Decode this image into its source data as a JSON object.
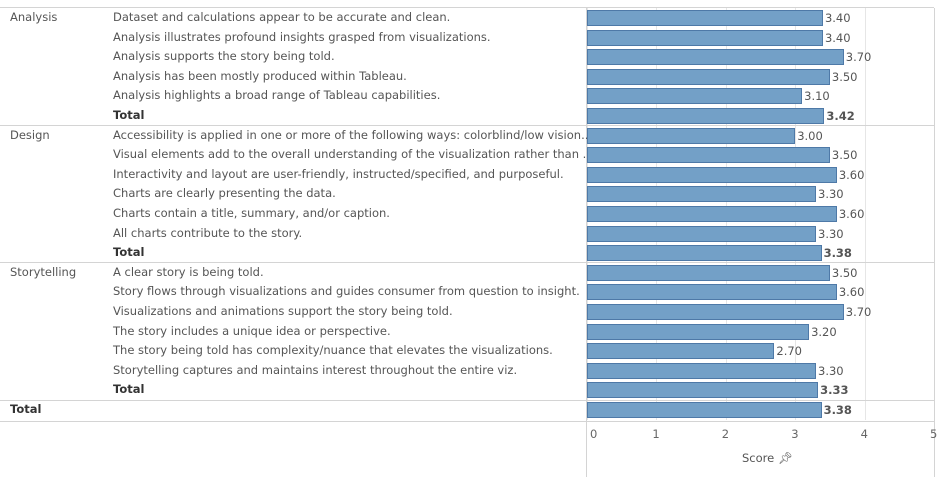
{
  "chart_data": {
    "type": "bar",
    "orientation": "horizontal",
    "xlabel": "Score",
    "xlim": [
      0,
      5
    ],
    "xticks": [
      "0",
      "1",
      "2",
      "3",
      "4",
      "5"
    ],
    "grid": true,
    "bar_color": "#73a0c7",
    "groups": [
      {
        "name": "Analysis",
        "rows": [
          {
            "label": "Dataset and calculations appear to be accurate and clean.",
            "value": 3.4,
            "text": "3.40"
          },
          {
            "label": "Analysis illustrates profound insights grasped from visualizations.",
            "value": 3.4,
            "text": "3.40"
          },
          {
            "label": "Analysis supports the story being told.",
            "value": 3.7,
            "text": "3.70"
          },
          {
            "label": "Analysis has been mostly produced within Tableau.",
            "value": 3.5,
            "text": "3.50"
          },
          {
            "label": "Analysis highlights a broad range of Tableau capabilities.",
            "value": 3.1,
            "text": "3.10"
          },
          {
            "label": "Total",
            "value": 3.42,
            "text": "3.42",
            "total": true
          }
        ]
      },
      {
        "name": "Design",
        "rows": [
          {
            "label": "Accessibility is applied in one or more of the following ways: colorblind/low vision..",
            "value": 3.0,
            "text": "3.00"
          },
          {
            "label": "Visual elements add to the overall understanding of the visualization rather than ..",
            "value": 3.5,
            "text": "3.50"
          },
          {
            "label": "Interactivity and layout are user-friendly, instructed/specified, and purposeful.",
            "value": 3.6,
            "text": "3.60"
          },
          {
            "label": "Charts are clearly presenting the data.",
            "value": 3.3,
            "text": "3.30"
          },
          {
            "label": "Charts contain a title, summary, and/or caption.",
            "value": 3.6,
            "text": "3.60"
          },
          {
            "label": "All charts contribute to the story.",
            "value": 3.3,
            "text": "3.30"
          },
          {
            "label": "Total",
            "value": 3.38,
            "text": "3.38",
            "total": true
          }
        ]
      },
      {
        "name": "Storytelling",
        "rows": [
          {
            "label": "A clear story is being told.",
            "value": 3.5,
            "text": "3.50"
          },
          {
            "label": "Story flows through visualizations and guides consumer from question to insight.",
            "value": 3.6,
            "text": "3.60"
          },
          {
            "label": "Visualizations and animations support the story being told.",
            "value": 3.7,
            "text": "3.70"
          },
          {
            "label": "The story includes a unique idea or perspective.",
            "value": 3.2,
            "text": "3.20"
          },
          {
            "label": "The story being told has complexity/nuance that elevates the visualizations.",
            "value": 2.7,
            "text": "2.70"
          },
          {
            "label": "Storytelling captures and maintains interest throughout the entire viz.",
            "value": 3.3,
            "text": "3.30"
          },
          {
            "label": "Total",
            "value": 3.33,
            "text": "3.33",
            "total": true
          }
        ]
      }
    ],
    "grand_total": {
      "label": "Total",
      "value": 3.38,
      "text": "3.38"
    }
  },
  "axis": {
    "title": "Score",
    "pin_icon": "pin-icon"
  }
}
